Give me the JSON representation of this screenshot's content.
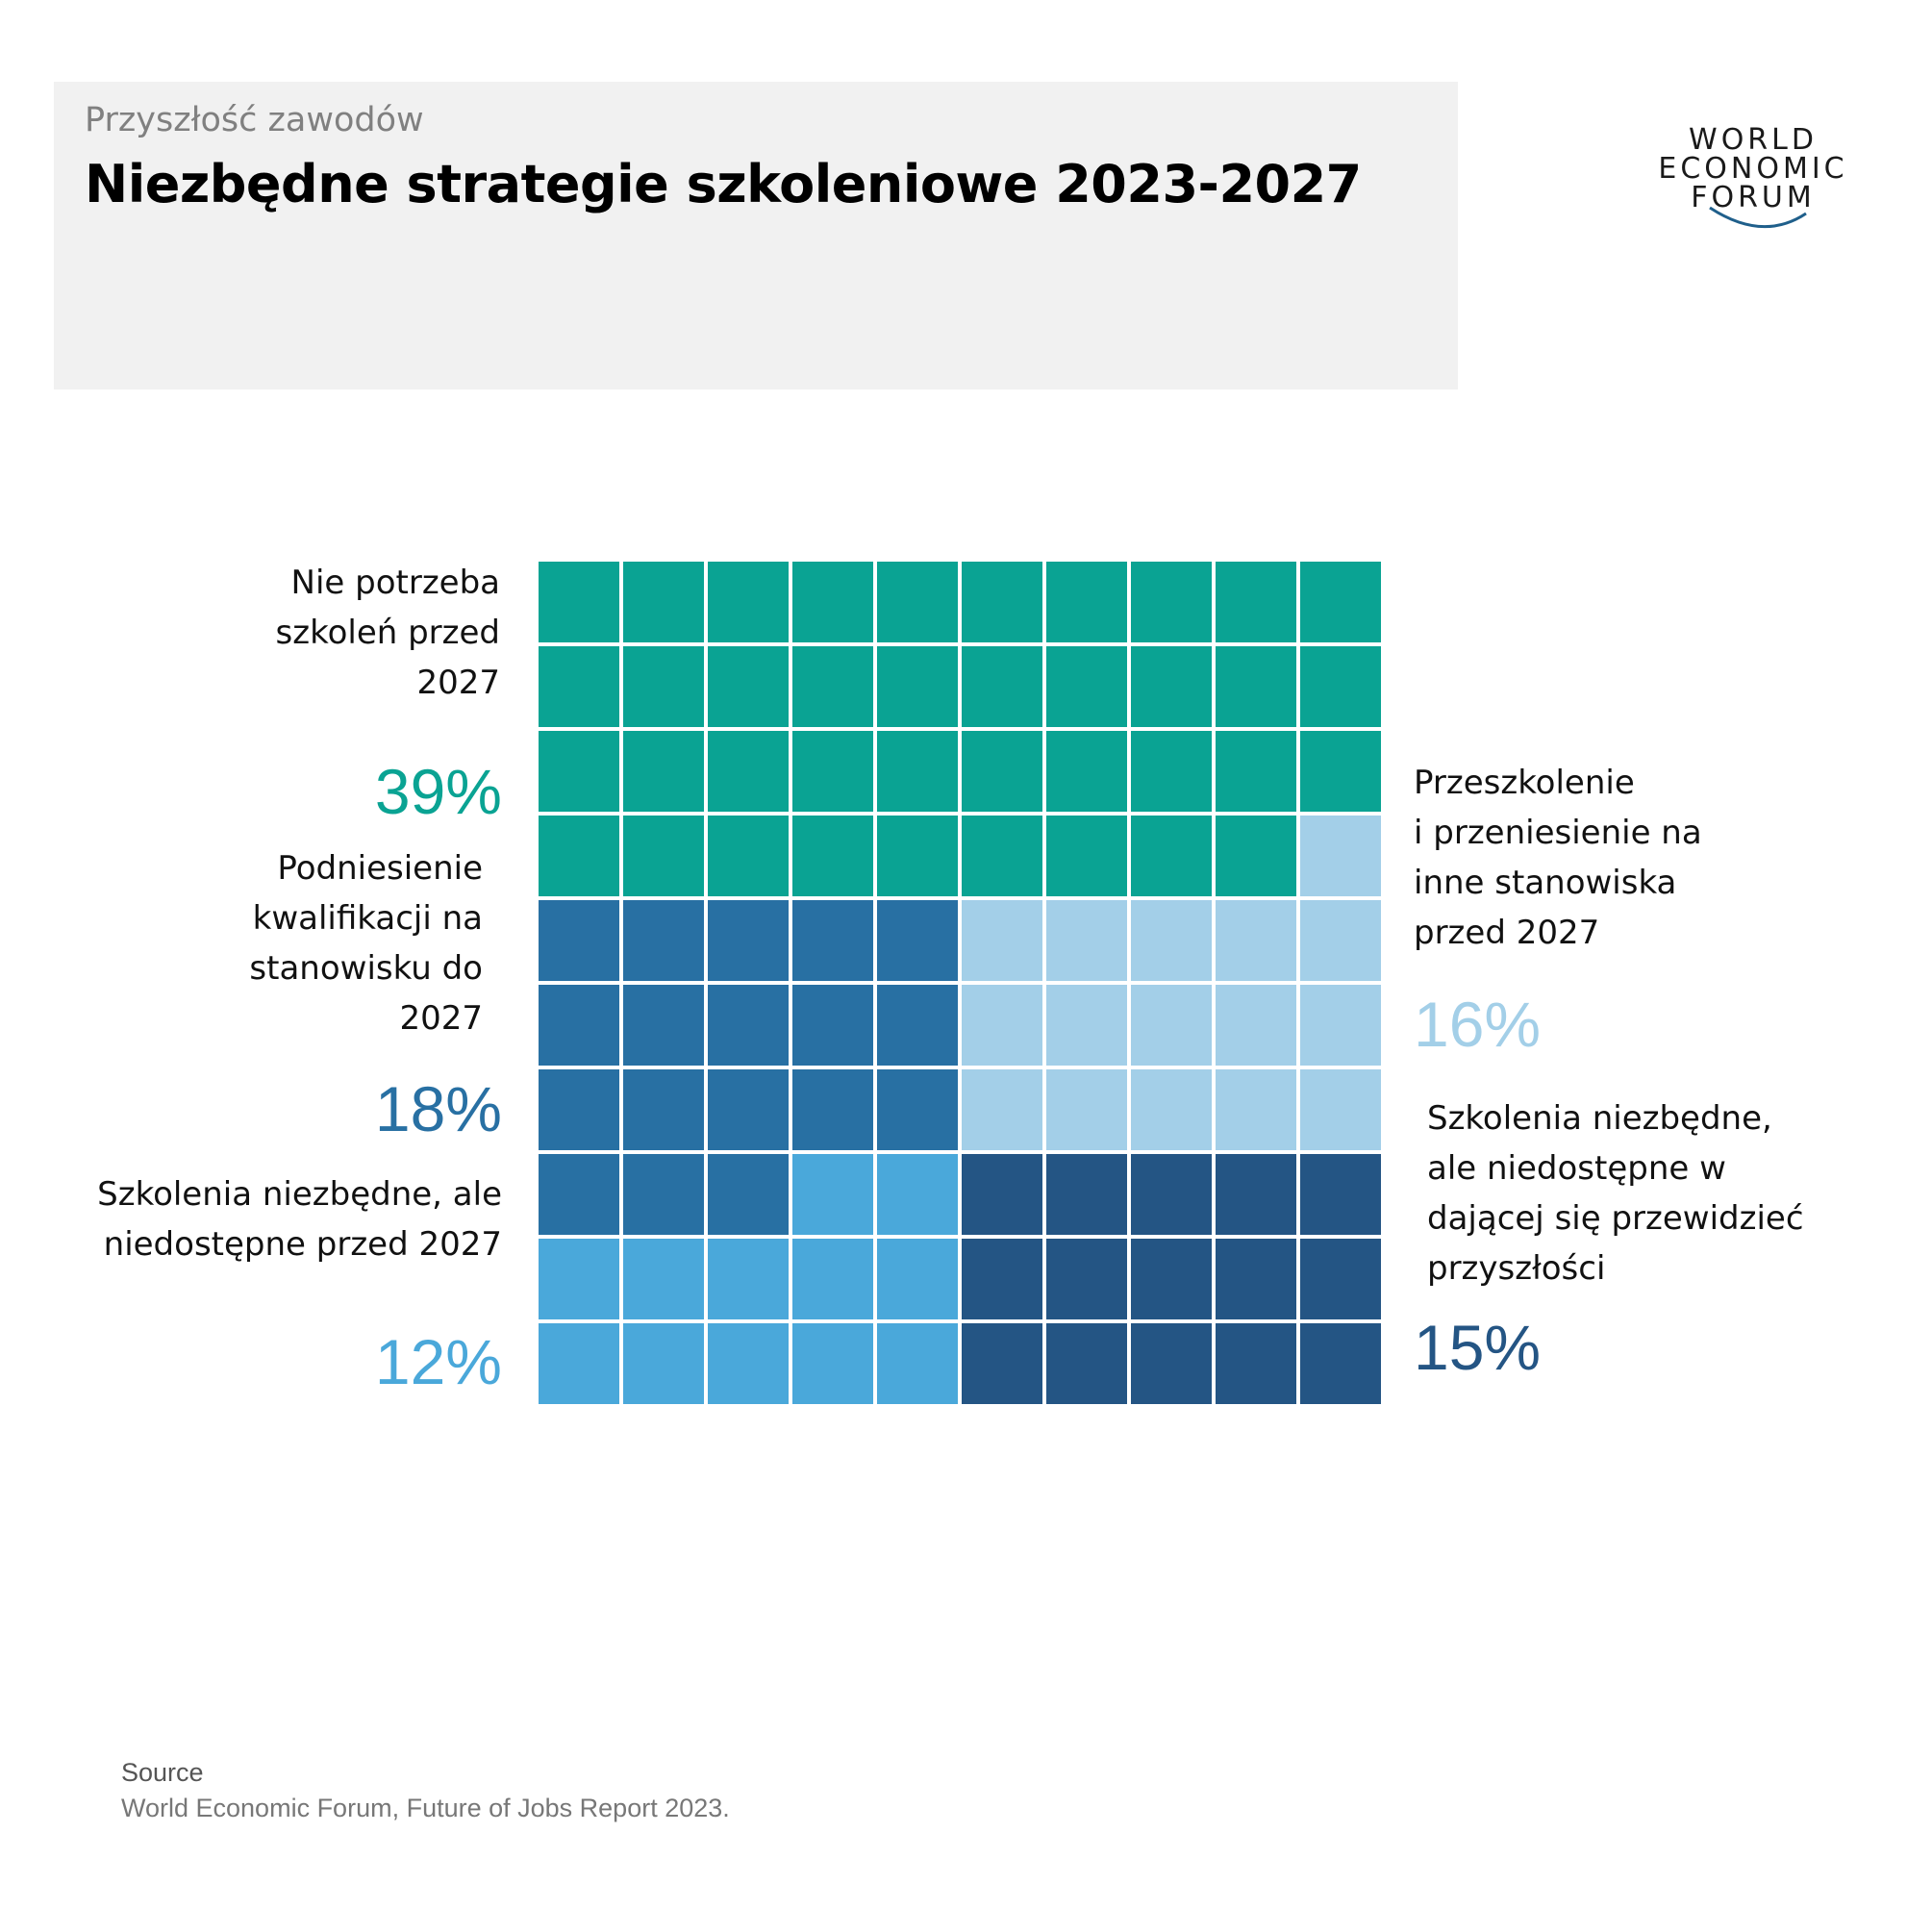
{
  "header": {
    "subtitle": "Przyszłość zawodów",
    "title": "Niezbędne strategie szkoleniowe 2023-2027"
  },
  "logo": {
    "lines": [
      "WORLD",
      "ECONOMIC",
      "FORUM"
    ],
    "arc_color": "#1f5f8b"
  },
  "chart_data": {
    "type": "waffle",
    "grid": {
      "columns": 10,
      "rows": 10,
      "total_cells": 100
    },
    "series": [
      {
        "key": "no_training",
        "name": "Nie potrzeba szkoleń przed 2027",
        "label_lines": [
          "Nie potrzeba",
          "szkoleń przed",
          "2027"
        ],
        "value": 39,
        "value_label": "39%",
        "color": "#0aa393",
        "cells": 39
      },
      {
        "key": "reskill_move",
        "name": "Przeszkolenie i przeniesienie na inne stanowiska przed 2027",
        "label_lines": [
          "Przeszkolenie",
          "i przeniesienie na",
          "inne stanowiska",
          "przed 2027"
        ],
        "value": 16,
        "value_label": "16%",
        "color": "#a3cfe8",
        "cells": 16
      },
      {
        "key": "upskill",
        "name": "Podniesienie kwalifikacji na stanowisku do 2027",
        "label_lines": [
          "Podniesienie",
          "kwalifikacji na",
          "stanowisku do",
          "2027"
        ],
        "value": 18,
        "value_label": "18%",
        "color": "#2870a3",
        "cells": 18
      },
      {
        "key": "needed_unavailable_2027",
        "name": "Szkolenia niezbędne, ale niedostępne przed 2027",
        "label_lines": [
          "Szkolenia niezbędne, ale",
          "niedostępne przed 2027"
        ],
        "value": 12,
        "value_label": "12%",
        "color": "#4aa8da",
        "cells": 12
      },
      {
        "key": "needed_unavailable_future",
        "name": "Szkolenia niezbędne, ale niedostępne w dającej się przewidzieć przyszłości",
        "label_lines": [
          "Szkolenia niezbędne,",
          "ale niedostępne w",
          "dającej się przewidzieć",
          "przyszłości"
        ],
        "value": 15,
        "value_label": "15%",
        "color": "#245584",
        "cells": 15
      }
    ],
    "cell_layout": [
      [
        "no_training",
        "no_training",
        "no_training",
        "no_training",
        "no_training",
        "no_training",
        "no_training",
        "no_training",
        "no_training",
        "no_training"
      ],
      [
        "no_training",
        "no_training",
        "no_training",
        "no_training",
        "no_training",
        "no_training",
        "no_training",
        "no_training",
        "no_training",
        "no_training"
      ],
      [
        "no_training",
        "no_training",
        "no_training",
        "no_training",
        "no_training",
        "no_training",
        "no_training",
        "no_training",
        "no_training",
        "no_training"
      ],
      [
        "no_training",
        "no_training",
        "no_training",
        "no_training",
        "no_training",
        "no_training",
        "no_training",
        "no_training",
        "no_training",
        "reskill_move"
      ],
      [
        "upskill",
        "upskill",
        "upskill",
        "upskill",
        "upskill",
        "reskill_move",
        "reskill_move",
        "reskill_move",
        "reskill_move",
        "reskill_move"
      ],
      [
        "upskill",
        "upskill",
        "upskill",
        "upskill",
        "upskill",
        "reskill_move",
        "reskill_move",
        "reskill_move",
        "reskill_move",
        "reskill_move"
      ],
      [
        "upskill",
        "upskill",
        "upskill",
        "upskill",
        "upskill",
        "reskill_move",
        "reskill_move",
        "reskill_move",
        "reskill_move",
        "reskill_move"
      ],
      [
        "upskill",
        "upskill",
        "upskill",
        "needed_unavailable_2027",
        "needed_unavailable_2027",
        "needed_unavailable_future",
        "needed_unavailable_future",
        "needed_unavailable_future",
        "needed_unavailable_future",
        "needed_unavailable_future"
      ],
      [
        "needed_unavailable_2027",
        "needed_unavailable_2027",
        "needed_unavailable_2027",
        "needed_unavailable_2027",
        "needed_unavailable_2027",
        "needed_unavailable_future",
        "needed_unavailable_future",
        "needed_unavailable_future",
        "needed_unavailable_future",
        "needed_unavailable_future"
      ],
      [
        "needed_unavailable_2027",
        "needed_unavailable_2027",
        "needed_unavailable_2027",
        "needed_unavailable_2027",
        "needed_unavailable_2027",
        "needed_unavailable_future",
        "needed_unavailable_future",
        "needed_unavailable_future",
        "needed_unavailable_future",
        "needed_unavailable_future"
      ]
    ]
  },
  "footer": {
    "source_label": "Source",
    "source_text": "World Economic Forum, Future of Jobs Report 2023."
  }
}
